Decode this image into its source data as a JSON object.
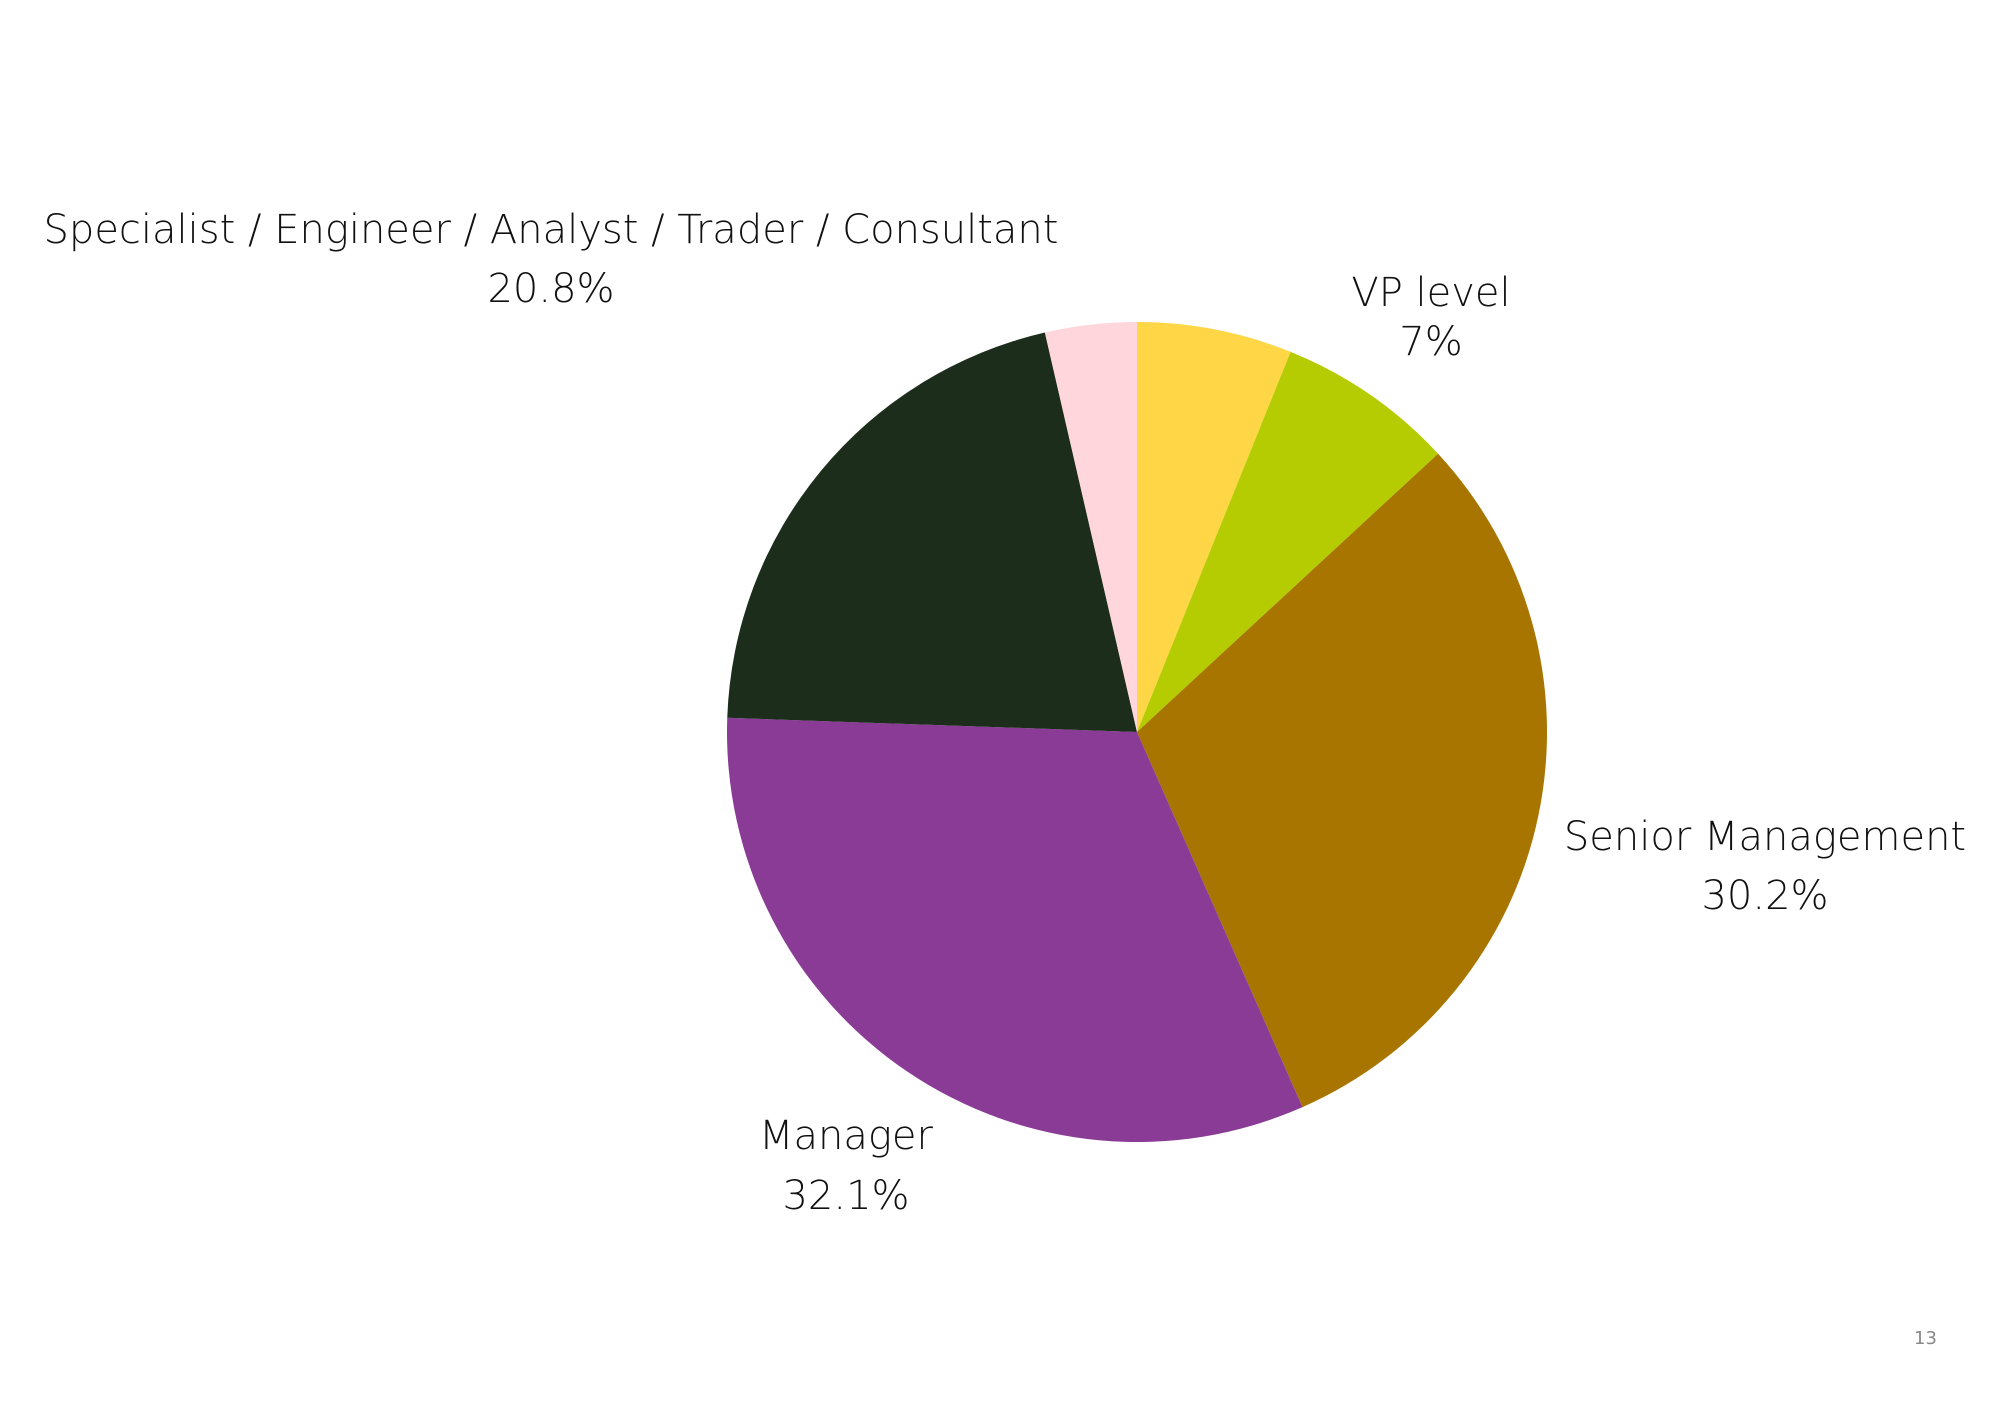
{
  "chart_data": {
    "type": "pie",
    "start": "top",
    "direction": "clockwise",
    "slices": [
      {
        "label": "",
        "value": 6.1,
        "value_label": "",
        "color": "#FFD646"
      },
      {
        "label": "VP level",
        "value": 7,
        "value_label": "7%",
        "color": "#B5CC02"
      },
      {
        "label": "Senior Management",
        "value": 30.2,
        "value_label": "30.2%",
        "color": "#A87500"
      },
      {
        "label": "Manager",
        "value": 32.1,
        "value_label": "32.1%",
        "color": "#8A3B95"
      },
      {
        "label": "Specialist / Engineer / Analyst / Trader / Consultant",
        "value": 20.8,
        "value_label": "20.8%",
        "color": "#1C2D1C"
      },
      {
        "label": "",
        "value": 3.6,
        "value_label": "",
        "color": "#FFD6DC"
      }
    ]
  },
  "page_number": "13"
}
